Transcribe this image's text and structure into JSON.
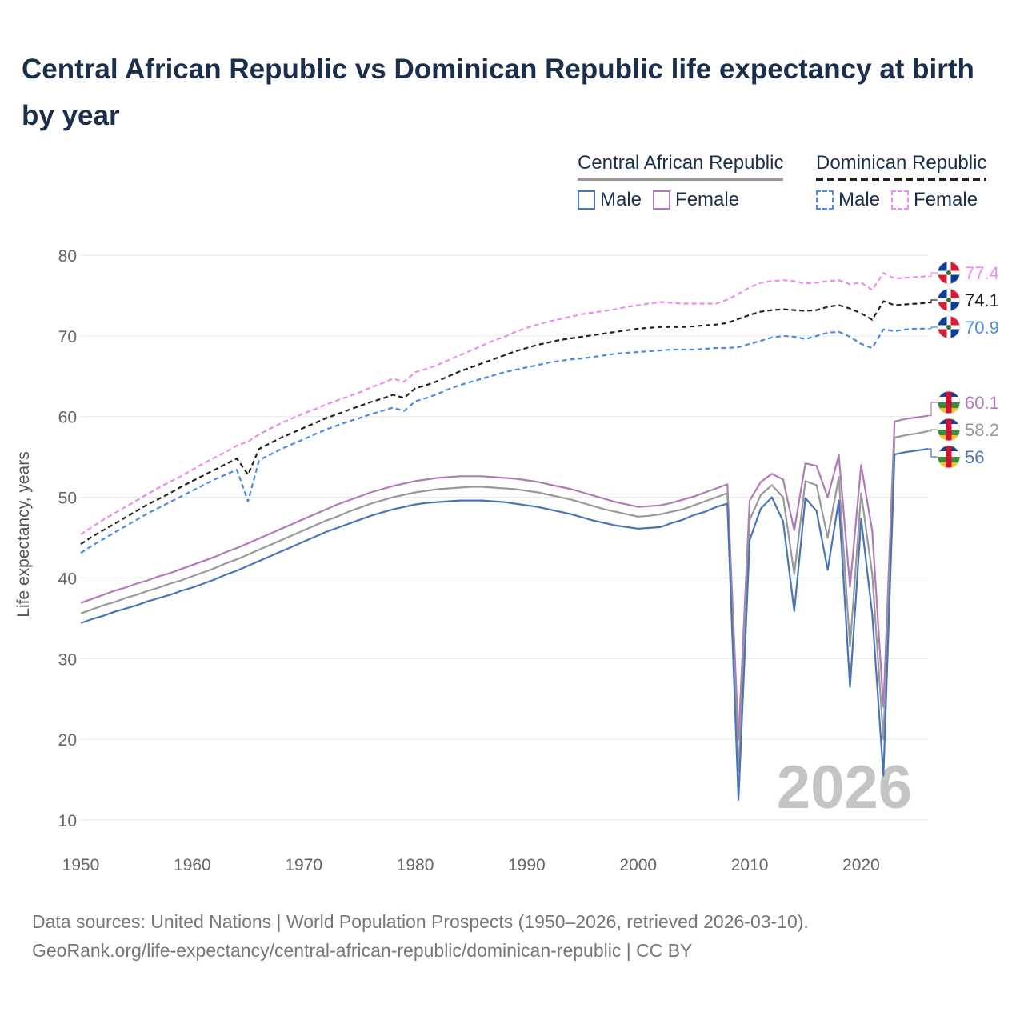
{
  "title": "Central African Republic vs Dominican Republic life expectancy at birth by year",
  "legend": {
    "groups": [
      {
        "country": "Central African Republic",
        "style": "solid",
        "rule_color": "#999999",
        "items": [
          {
            "label": "Male",
            "color": "#4a74b8"
          },
          {
            "label": "Female",
            "color": "#b07ab8"
          }
        ]
      },
      {
        "country": "Dominican Republic",
        "style": "dashed",
        "rule_color": "#222222",
        "items": [
          {
            "label": "Male",
            "color": "#4a8ae8"
          },
          {
            "label": "Female",
            "color": "#f08af0"
          }
        ]
      }
    ]
  },
  "footer": {
    "line1": "Data sources: United Nations | World Population Prospects (1950–2026, retrieved 2026-03-10).",
    "line2": "GeoRank.org/life-expectancy/central-african-republic/dominican-republic | CC BY"
  },
  "chart_data": {
    "type": "line",
    "title": "Central African Republic vs Dominican Republic life expectancy at birth by year",
    "xlabel": "",
    "ylabel": "Life expectancy, years",
    "xlim": [
      1950,
      2026
    ],
    "ylim": [
      10,
      80
    ],
    "xticks": [
      1950,
      1960,
      1970,
      1980,
      1990,
      2000,
      2010,
      2020
    ],
    "yticks": [
      10,
      20,
      30,
      40,
      50,
      60,
      70,
      80
    ],
    "grid": true,
    "year_watermark": "2026",
    "x": [
      1950,
      1951,
      1952,
      1953,
      1954,
      1955,
      1956,
      1957,
      1958,
      1959,
      1960,
      1961,
      1962,
      1963,
      1964,
      1965,
      1966,
      1967,
      1968,
      1969,
      1970,
      1971,
      1972,
      1973,
      1974,
      1975,
      1976,
      1977,
      1978,
      1979,
      1980,
      1981,
      1982,
      1983,
      1984,
      1985,
      1986,
      1987,
      1988,
      1989,
      1990,
      1991,
      1992,
      1993,
      1994,
      1995,
      1996,
      1997,
      1998,
      1999,
      2000,
      2001,
      2002,
      2003,
      2004,
      2005,
      2006,
      2007,
      2008,
      2009,
      2010,
      2011,
      2012,
      2013,
      2014,
      2015,
      2016,
      2017,
      2018,
      2019,
      2020,
      2021,
      2022,
      2023,
      2024,
      2025,
      2026
    ],
    "series": [
      {
        "name": "Dominican Republic Female",
        "country": "Dominican Republic",
        "sex": "Female",
        "color": "#f08af0",
        "dash": true,
        "end_label": "77.4",
        "values": [
          45.4,
          46.3,
          47.2,
          48.0,
          48.8,
          49.6,
          50.4,
          51.2,
          51.9,
          52.6,
          53.4,
          54.2,
          54.9,
          55.6,
          56.4,
          56.9,
          57.8,
          58.5,
          59.2,
          59.8,
          60.4,
          60.9,
          61.5,
          62.0,
          62.5,
          63.0,
          63.6,
          64.1,
          64.7,
          64.3,
          65.5,
          65.9,
          66.4,
          67.0,
          67.6,
          68.2,
          68.8,
          69.4,
          69.9,
          70.5,
          71.0,
          71.4,
          71.8,
          72.1,
          72.4,
          72.7,
          72.9,
          73.1,
          73.3,
          73.6,
          73.8,
          74.0,
          74.2,
          74.1,
          74.0,
          74.0,
          74.0,
          74.0,
          74.5,
          75.2,
          76.0,
          76.6,
          76.8,
          76.9,
          76.8,
          76.5,
          76.6,
          76.8,
          76.9,
          76.4,
          76.6,
          75.7,
          77.8,
          77.1,
          77.2,
          77.3,
          77.4
        ]
      },
      {
        "name": "Dominican Republic Total",
        "country": "Dominican Republic",
        "sex": "Total",
        "color": "#222222",
        "dash": true,
        "end_label": "74.1",
        "values": [
          44.2,
          45.1,
          45.9,
          46.7,
          47.5,
          48.3,
          49.1,
          49.8,
          50.5,
          51.3,
          52.0,
          52.7,
          53.4,
          54.1,
          54.8,
          52.8,
          56.0,
          56.7,
          57.4,
          58.0,
          58.6,
          59.2,
          59.8,
          60.3,
          60.8,
          61.3,
          61.8,
          62.2,
          62.7,
          62.3,
          63.5,
          63.9,
          64.4,
          65.0,
          65.6,
          66.1,
          66.6,
          67.1,
          67.6,
          68.1,
          68.5,
          68.9,
          69.2,
          69.5,
          69.7,
          69.9,
          70.1,
          70.3,
          70.5,
          70.7,
          70.9,
          71.0,
          71.1,
          71.1,
          71.1,
          71.2,
          71.3,
          71.4,
          71.6,
          72.1,
          72.6,
          73.0,
          73.2,
          73.3,
          73.2,
          73.1,
          73.2,
          73.6,
          73.8,
          73.4,
          72.8,
          72.0,
          74.3,
          73.8,
          73.9,
          74.0,
          74.1
        ]
      },
      {
        "name": "Dominican Republic Male",
        "country": "Dominican Republic",
        "sex": "Male",
        "color": "#4a8ae8",
        "dash": true,
        "end_label": "70.9",
        "values": [
          43.1,
          44.0,
          44.8,
          45.6,
          46.4,
          47.2,
          48.0,
          48.7,
          49.4,
          50.1,
          50.8,
          51.5,
          52.2,
          52.8,
          53.4,
          49.5,
          54.6,
          55.3,
          56.0,
          56.6,
          57.2,
          57.8,
          58.4,
          58.9,
          59.4,
          59.8,
          60.3,
          60.7,
          61.1,
          60.7,
          61.9,
          62.3,
          62.8,
          63.4,
          63.9,
          64.3,
          64.7,
          65.1,
          65.5,
          65.8,
          66.1,
          66.4,
          66.7,
          66.9,
          67.1,
          67.2,
          67.4,
          67.6,
          67.8,
          67.9,
          68.0,
          68.1,
          68.2,
          68.3,
          68.3,
          68.3,
          68.4,
          68.5,
          68.5,
          68.6,
          69.0,
          69.4,
          69.8,
          70.0,
          69.9,
          69.6,
          70.0,
          70.4,
          70.5,
          69.9,
          69.0,
          68.5,
          70.8,
          70.6,
          70.8,
          70.9,
          70.9
        ]
      },
      {
        "name": "Central African Republic Female",
        "country": "Central African Republic",
        "sex": "Female",
        "color": "#b07ab8",
        "dash": false,
        "end_label": "60.1",
        "values": [
          36.9,
          37.4,
          37.9,
          38.4,
          38.8,
          39.3,
          39.7,
          40.2,
          40.6,
          41.1,
          41.6,
          42.1,
          42.6,
          43.2,
          43.7,
          44.3,
          44.9,
          45.5,
          46.1,
          46.7,
          47.3,
          47.9,
          48.5,
          49.1,
          49.6,
          50.1,
          50.6,
          51.0,
          51.4,
          51.7,
          52.0,
          52.2,
          52.4,
          52.5,
          52.6,
          52.6,
          52.6,
          52.5,
          52.4,
          52.3,
          52.1,
          51.9,
          51.6,
          51.3,
          51.0,
          50.6,
          50.2,
          49.8,
          49.4,
          49.1,
          48.8,
          48.9,
          49.0,
          49.3,
          49.7,
          50.1,
          50.6,
          51.1,
          51.6,
          20.0,
          49.6,
          51.9,
          52.9,
          52.2,
          45.9,
          54.2,
          53.9,
          50.0,
          55.2,
          38.9,
          54.0,
          45.8,
          24.0,
          59.4,
          59.7,
          59.9,
          60.1
        ]
      },
      {
        "name": "Central African Republic Total",
        "country": "Central African Republic",
        "sex": "Total",
        "color": "#999999",
        "dash": false,
        "end_label": "58.2",
        "values": [
          35.6,
          36.1,
          36.6,
          37.0,
          37.5,
          37.9,
          38.4,
          38.8,
          39.3,
          39.7,
          40.2,
          40.7,
          41.2,
          41.8,
          42.3,
          42.9,
          43.5,
          44.1,
          44.7,
          45.3,
          45.9,
          46.5,
          47.1,
          47.6,
          48.2,
          48.7,
          49.2,
          49.6,
          50.0,
          50.3,
          50.6,
          50.8,
          51.0,
          51.1,
          51.2,
          51.3,
          51.3,
          51.2,
          51.1,
          51.0,
          50.8,
          50.6,
          50.3,
          50.0,
          49.7,
          49.3,
          48.9,
          48.5,
          48.2,
          47.9,
          47.6,
          47.7,
          47.9,
          48.2,
          48.5,
          49.0,
          49.5,
          50.0,
          50.5,
          16.0,
          47.2,
          50.3,
          51.5,
          50.0,
          40.5,
          52.0,
          51.5,
          45.0,
          52.5,
          31.5,
          50.5,
          40.5,
          20.0,
          57.4,
          57.7,
          57.9,
          58.2
        ]
      },
      {
        "name": "Central African Republic Male",
        "country": "Central African Republic",
        "sex": "Male",
        "color": "#4a74b8",
        "dash": false,
        "end_label": "56",
        "values": [
          34.4,
          34.9,
          35.3,
          35.8,
          36.2,
          36.6,
          37.1,
          37.5,
          37.9,
          38.4,
          38.8,
          39.3,
          39.8,
          40.4,
          40.9,
          41.5,
          42.1,
          42.7,
          43.3,
          43.9,
          44.5,
          45.1,
          45.7,
          46.2,
          46.7,
          47.2,
          47.7,
          48.1,
          48.5,
          48.8,
          49.1,
          49.3,
          49.4,
          49.5,
          49.6,
          49.6,
          49.6,
          49.5,
          49.4,
          49.2,
          49.0,
          48.8,
          48.5,
          48.2,
          47.9,
          47.5,
          47.1,
          46.8,
          46.5,
          46.3,
          46.1,
          46.2,
          46.3,
          46.8,
          47.2,
          47.8,
          48.2,
          48.8,
          49.2,
          12.5,
          44.7,
          48.6,
          50.0,
          47.0,
          35.9,
          49.9,
          48.3,
          41.0,
          49.6,
          26.5,
          47.3,
          35.5,
          15.5,
          55.3,
          55.6,
          55.8,
          56.0
        ]
      }
    ]
  }
}
